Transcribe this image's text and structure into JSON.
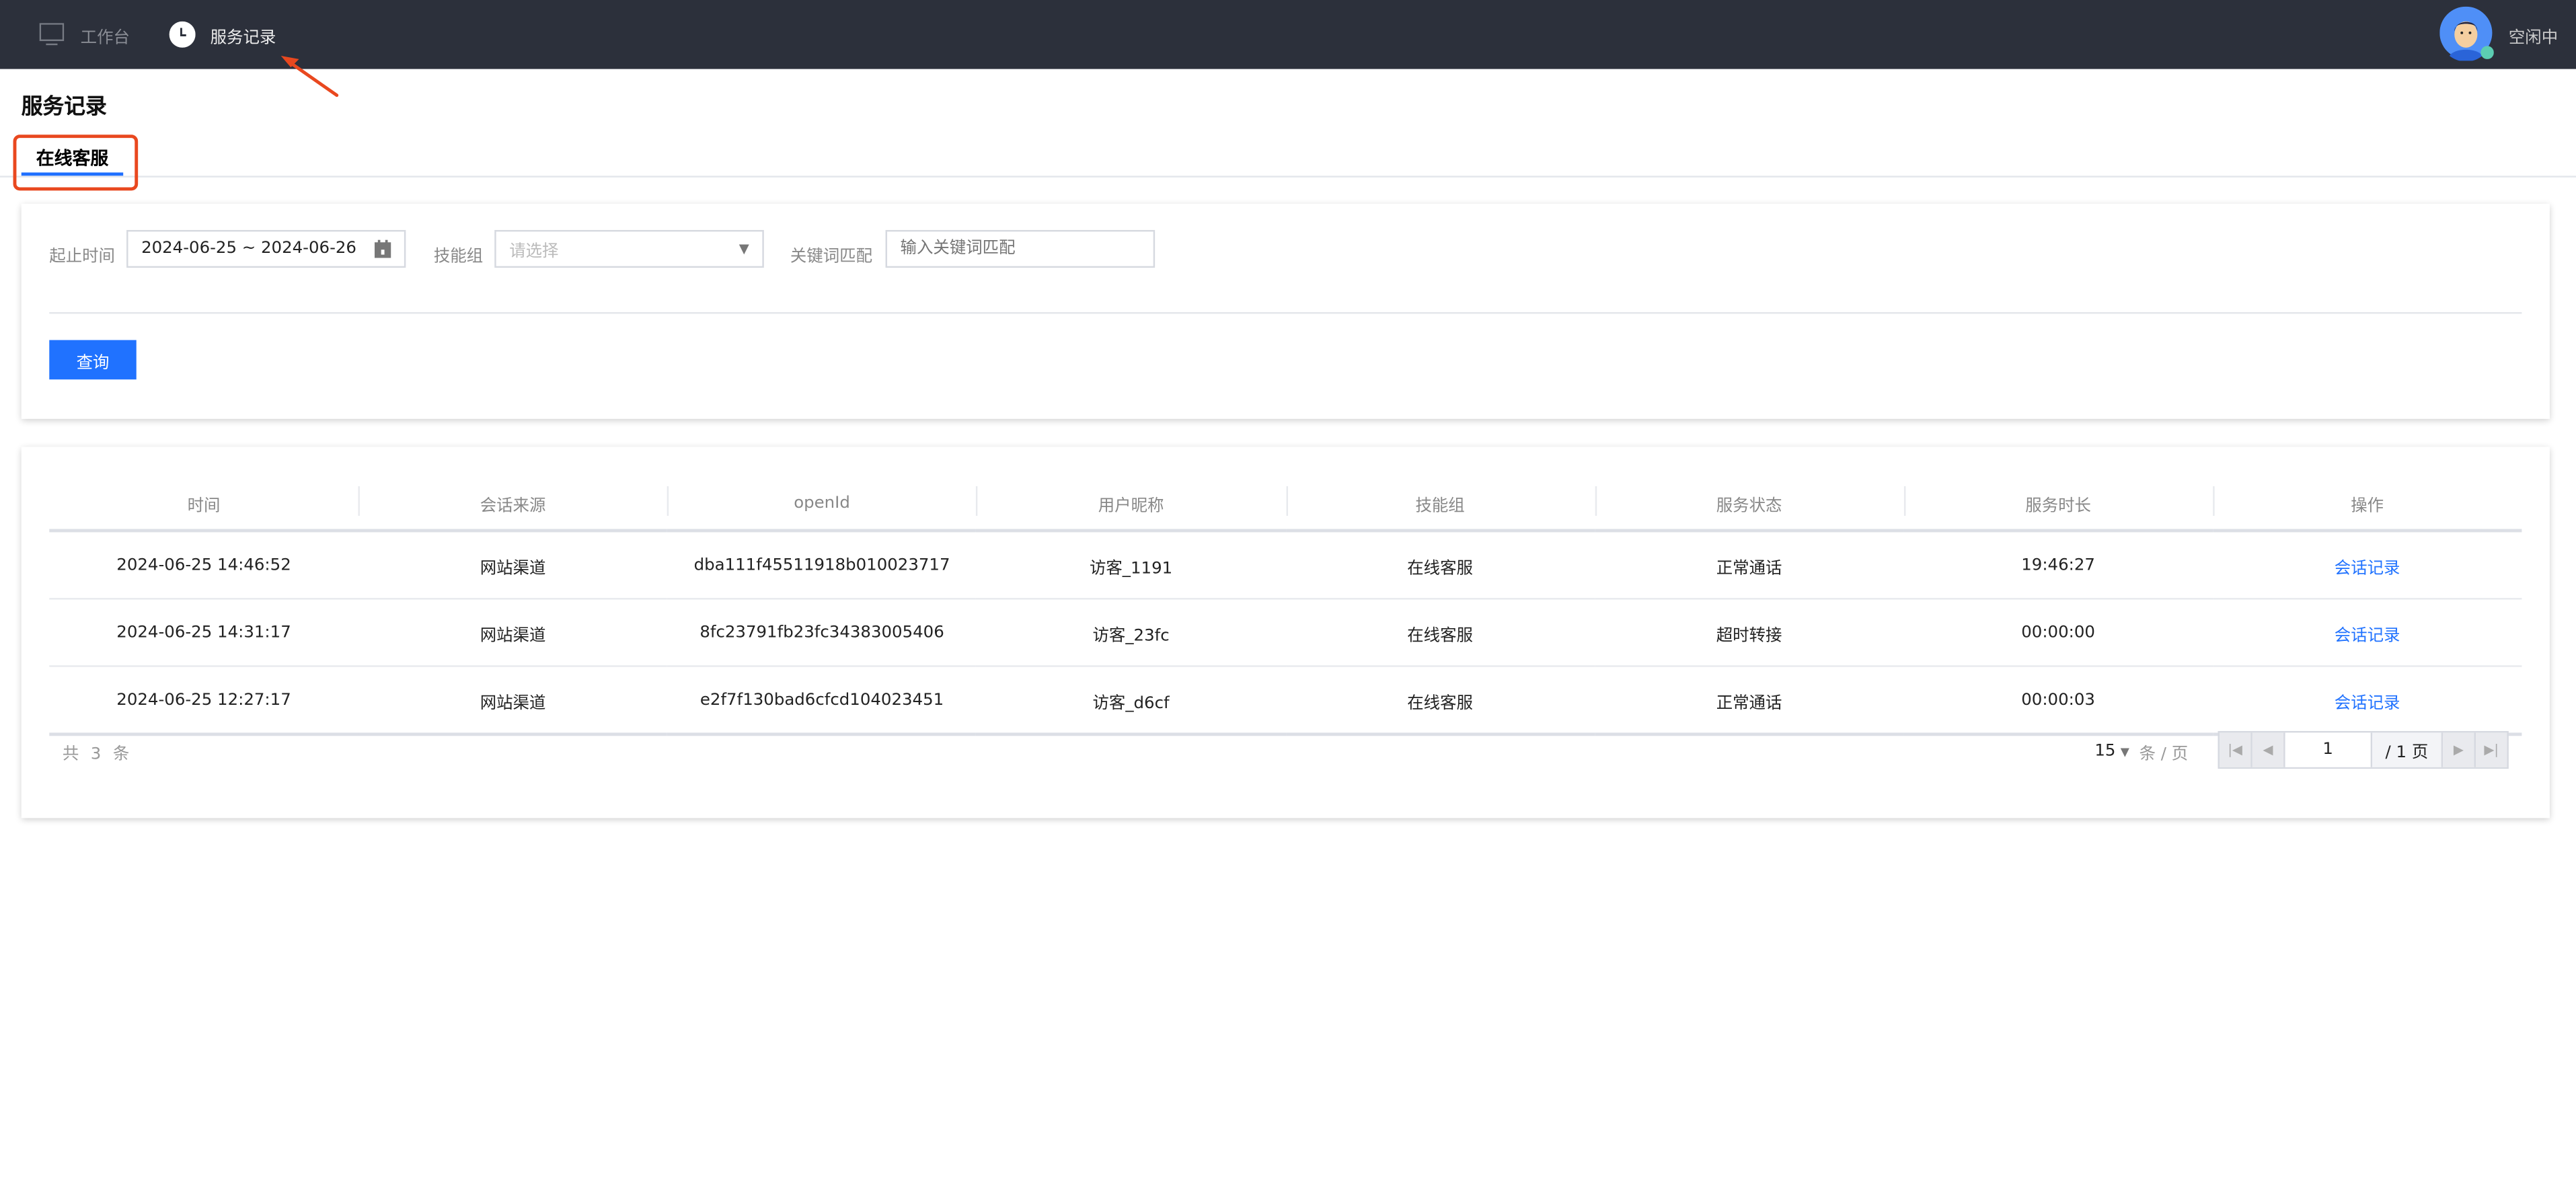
{
  "topbar": {
    "nav": [
      {
        "label": "工作台",
        "icon": "monitor-icon"
      },
      {
        "label": "服务记录",
        "icon": "clock-icon",
        "active": true
      }
    ],
    "status": "空闲中",
    "status_color": "#5ccdb2"
  },
  "page": {
    "title": "服务记录",
    "tabs": [
      {
        "label": "在线客服",
        "active": true
      }
    ]
  },
  "filters": {
    "date_label": "起止时间",
    "date_value": "2024-06-25 ~ 2024-06-26",
    "skill_label": "技能组",
    "skill_placeholder": "请选择",
    "keyword_label": "关键词匹配",
    "keyword_placeholder": "输入关键词匹配",
    "search_button": "查询"
  },
  "table": {
    "columns": [
      "时间",
      "会话来源",
      "openId",
      "用户昵称",
      "技能组",
      "服务状态",
      "服务时长",
      "操作"
    ],
    "rows": [
      [
        "2024-06-25 14:46:52",
        "网站渠道",
        "dba111f45511918b010023717",
        "访客_1191",
        "在线客服",
        "正常通话",
        "19:46:27",
        "会话记录"
      ],
      [
        "2024-06-25 14:31:17",
        "网站渠道",
        "8fc23791fb23fc34383005406",
        "访客_23fc",
        "在线客服",
        "超时转接",
        "00:00:00",
        "会话记录"
      ],
      [
        "2024-06-25 12:27:17",
        "网站渠道",
        "e2f7f130bad6cfcd104023451",
        "访客_d6cf",
        "在线客服",
        "正常通话",
        "00:00:03",
        "会话记录"
      ]
    ]
  },
  "pagination": {
    "total": "共 3 条",
    "page_size": "15",
    "per_page_unit": "条 / 页",
    "current_page": "1",
    "total_pages": "/ 1 页"
  },
  "colors": {
    "accent": "#2072ff",
    "topbar": "#2c303b",
    "annotation": "#e9481f"
  }
}
